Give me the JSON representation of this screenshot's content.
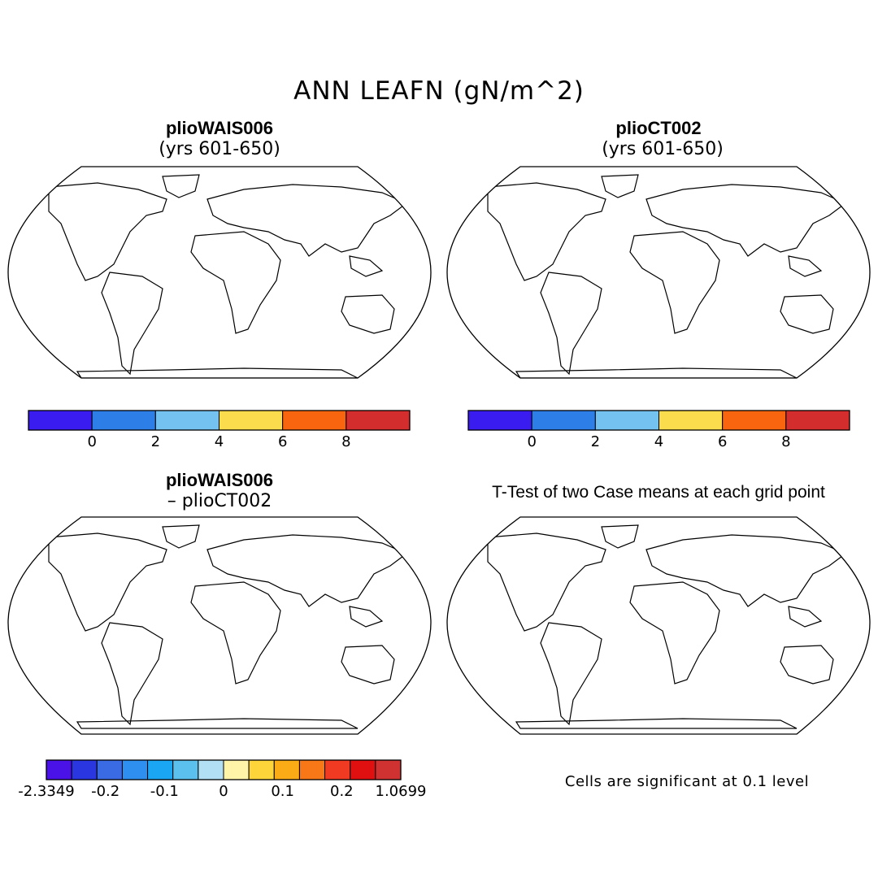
{
  "title": "ANN LEAFN (gN/m^2)",
  "panels": {
    "top_left": {
      "name": "plioWAIS006",
      "subtitle": "(yrs 601-650)"
    },
    "top_right": {
      "name": "plioCT002",
      "subtitle": "(yrs 601-650)"
    },
    "bottom_left": {
      "name": "plioWAIS006",
      "subtitle": "– plioCT002"
    },
    "bottom_right": {
      "name": "T-Test of two Case means at each grid point"
    }
  },
  "colorbar_abs": {
    "colors": [
      "#3a1cf0",
      "#2d7ee6",
      "#73c2ef",
      "#fbdc4c",
      "#f8650e",
      "#d42d2d"
    ],
    "labels": [
      "0",
      "2",
      "4",
      "6",
      "8"
    ]
  },
  "colorbar_diff": {
    "colors": [
      "#4a12e6",
      "#2a36e0",
      "#3a6ae4",
      "#2e8ff0",
      "#1aa6f2",
      "#5cc0ee",
      "#b3dff4",
      "#fff4a8",
      "#fdd43a",
      "#fbab16",
      "#f87818",
      "#f03a22",
      "#e01010",
      "#d03232"
    ],
    "labels": [
      "-2.3349",
      "-0.2",
      "-0.1",
      "0",
      "0.1",
      "0.2",
      "1.0699"
    ]
  },
  "significance_note": "Cells are significant at 0.1 level",
  "colors": {
    "land_fill_abs": "#2f7fe8",
    "diff_land": "#fff4a8",
    "signif": "#ff0000"
  }
}
